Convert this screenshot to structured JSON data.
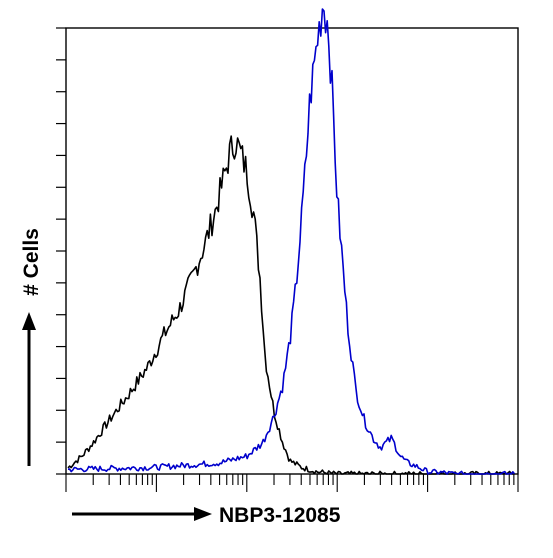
{
  "chart_data": {
    "type": "line",
    "xlabel": "NBP3-12085",
    "ylabel": "# Cells",
    "x_scale": "log",
    "xlim": [
      1,
      100000
    ],
    "ylim": [
      0,
      100
    ],
    "grid": false,
    "series": [
      {
        "color": "#000000",
        "x": [
          1,
          1.5,
          2,
          3,
          5,
          8,
          12,
          18,
          25,
          35,
          45,
          55,
          65,
          75,
          85,
          100,
          120,
          140,
          160,
          200,
          250,
          300,
          400,
          600,
          1000
        ],
        "y": [
          1,
          4,
          7,
          12,
          18,
          24,
          31,
          37,
          44,
          52,
          59,
          66,
          72,
          75,
          72,
          68,
          58,
          44,
          26,
          14,
          7,
          3,
          1.5,
          0.5,
          0
        ]
      },
      {
        "color": "#0000cc",
        "x": [
          1,
          10,
          50,
          100,
          150,
          200,
          250,
          300,
          350,
          400,
          450,
          500,
          600,
          700,
          800,
          900,
          1000,
          1300,
          1600,
          2000,
          2500,
          3000,
          4000,
          5000,
          6000,
          8000,
          10000,
          15000,
          20000,
          100000
        ],
        "y": [
          1,
          1.5,
          2.5,
          4,
          7,
          13,
          20,
          30,
          42,
          56,
          70,
          84,
          97,
          106,
          100,
          82,
          62,
          34,
          19,
          12,
          8,
          6,
          8,
          4,
          2.5,
          1.5,
          0.5,
          0.3,
          0,
          0
        ]
      }
    ]
  }
}
